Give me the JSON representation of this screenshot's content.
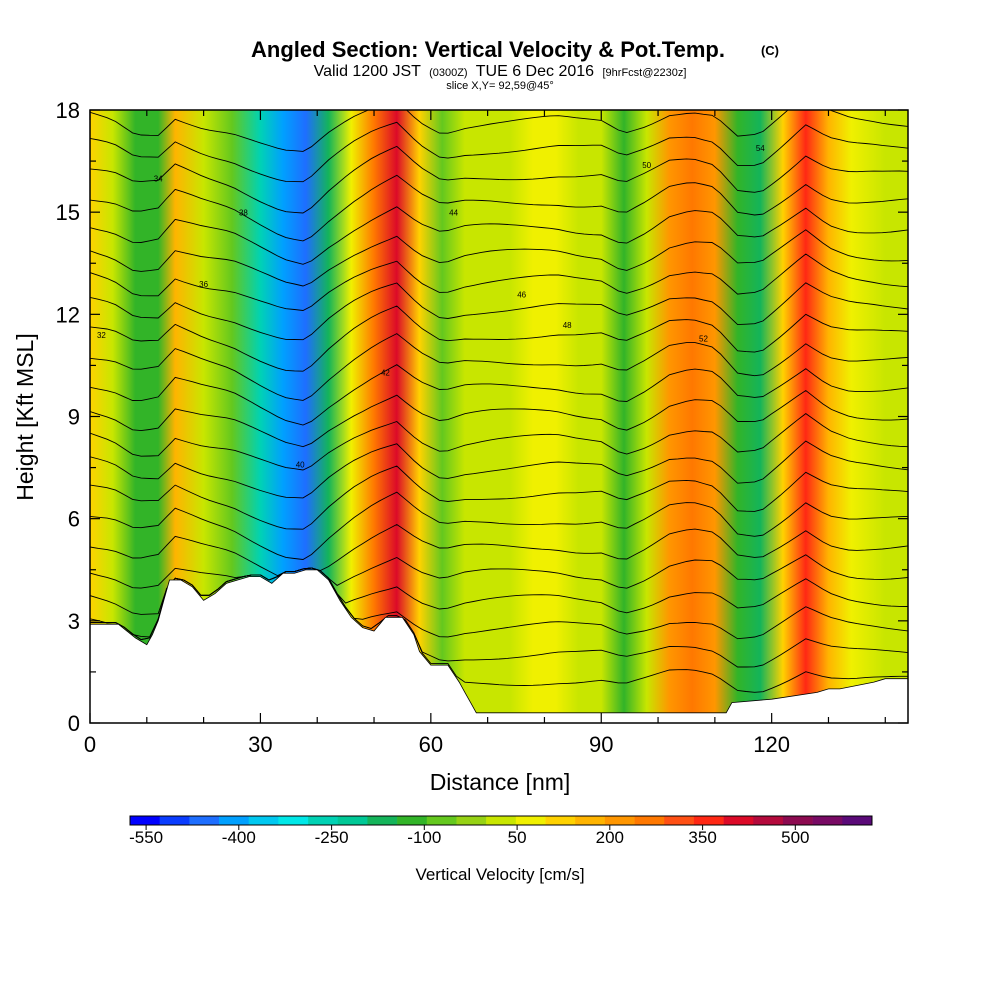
{
  "chart_data": {
    "type": "heatmap",
    "title": "Angled Section: Vertical Velocity & Pot.Temp.",
    "title_unit": "(C)",
    "subtitle_parts": [
      "Valid 1200 JST",
      "(0300Z)",
      "TUE 6 Dec 2016",
      "[9hrFcst@2230z]"
    ],
    "slice_label": "slice X,Y= 92,59@45°",
    "xlabel": "Distance [nm]",
    "ylabel": "Height [Kft MSL]",
    "xlim": [
      0,
      144
    ],
    "ylim": [
      0,
      18
    ],
    "x_ticks": [
      0,
      30,
      60,
      90,
      120
    ],
    "y_ticks": [
      0,
      3,
      6,
      9,
      12,
      15,
      18
    ],
    "colorbar": {
      "title": "Vertical Velocity [cm/s]",
      "min": -600,
      "max": 600,
      "step": 50,
      "labels": [
        -550,
        -400,
        -250,
        -100,
        50,
        200,
        350,
        500
      ],
      "colors": [
        "#0000ff",
        "#0a3cff",
        "#1e6eff",
        "#00a0ff",
        "#00c8f0",
        "#00e8e8",
        "#00d2b4",
        "#00c896",
        "#14b45a",
        "#32b428",
        "#64c81e",
        "#96d214",
        "#c8e600",
        "#f0f000",
        "#ffd200",
        "#ffb400",
        "#ff9600",
        "#ff7800",
        "#ff5014",
        "#ff2814",
        "#dc0a28",
        "#b40a3c",
        "#8c0a50",
        "#780a64",
        "#5a0a78"
      ]
    },
    "velocity_profile": {
      "distance_nm": [
        0,
        4,
        8,
        12,
        15,
        20,
        25,
        30,
        34,
        38,
        42,
        46,
        50,
        54,
        58,
        62,
        66,
        70,
        74,
        78,
        82,
        86,
        90,
        94,
        98,
        102,
        106,
        110,
        114,
        118,
        122,
        126,
        130,
        134,
        140,
        144
      ],
      "w_cms": [
        120,
        40,
        -150,
        -120,
        150,
        0,
        -100,
        -300,
        -450,
        -500,
        -200,
        50,
        250,
        400,
        100,
        -80,
        0,
        30,
        40,
        50,
        60,
        20,
        10,
        -150,
        0,
        200,
        260,
        200,
        -150,
        -160,
        100,
        380,
        150,
        50,
        20,
        20
      ]
    },
    "terrain_kft": {
      "distance_nm": [
        0,
        5,
        8,
        10,
        11,
        12,
        13,
        14,
        16,
        18,
        20,
        22,
        24,
        26,
        28,
        30,
        32,
        34,
        36,
        38,
        40,
        42,
        44,
        46,
        48,
        50,
        52,
        55,
        57,
        58,
        60,
        63,
        65,
        66,
        67,
        68,
        70,
        100,
        112,
        113,
        120,
        128,
        130,
        132,
        138,
        140,
        144
      ],
      "height": [
        2.9,
        2.9,
        2.5,
        2.3,
        2.6,
        3.0,
        3.6,
        4.2,
        4.2,
        4.0,
        3.6,
        3.8,
        4.1,
        4.2,
        4.3,
        4.3,
        4.1,
        4.4,
        4.4,
        4.5,
        4.5,
        4.2,
        3.6,
        3.1,
        2.8,
        2.7,
        3.1,
        3.1,
        2.6,
        2.1,
        1.7,
        1.7,
        1.2,
        0.9,
        0.6,
        0.3,
        0.3,
        0.3,
        0.3,
        0.6,
        0.7,
        0.9,
        1.0,
        1.0,
        1.2,
        1.3,
        1.3
      ]
    },
    "theta_labels": [
      "32",
      "34",
      "36",
      "38",
      "40",
      "42",
      "44",
      "46",
      "48",
      "50",
      "52",
      "54"
    ]
  }
}
